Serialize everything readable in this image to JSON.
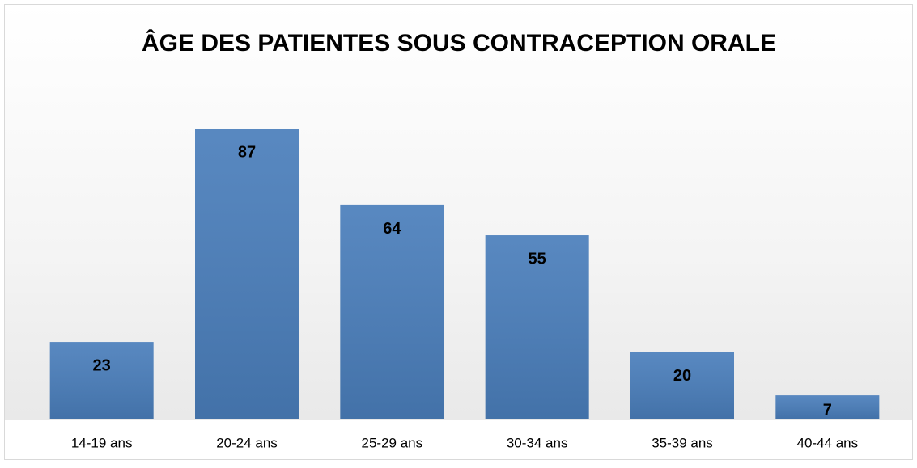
{
  "chart_data": {
    "type": "bar",
    "title": "ÂGE DES PATIENTES SOUS CONTRACEPTION ORALE",
    "categories": [
      "14-19 ans",
      "20-24 ans",
      "25-29 ans",
      "30-34 ans",
      "35-39 ans",
      "40-44 ans"
    ],
    "values": [
      23,
      87,
      64,
      55,
      20,
      7
    ],
    "color": "#4a7ebb"
  }
}
